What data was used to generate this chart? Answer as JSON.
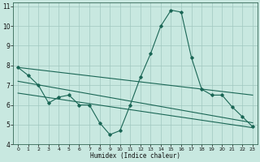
{
  "xlabel": "Humidex (Indice chaleur)",
  "xlim": [
    -0.5,
    23.5
  ],
  "ylim": [
    4,
    11.2
  ],
  "yticks": [
    4,
    5,
    6,
    7,
    8,
    9,
    10,
    11
  ],
  "xticks": [
    0,
    1,
    2,
    3,
    4,
    5,
    6,
    7,
    8,
    9,
    10,
    11,
    12,
    13,
    14,
    15,
    16,
    17,
    18,
    19,
    20,
    21,
    22,
    23
  ],
  "background_color": "#c8e8e0",
  "grid_color": "#a0c8c0",
  "line_color": "#1a6655",
  "lines": [
    {
      "x": [
        0,
        1,
        2,
        3,
        4,
        5,
        6,
        7,
        8,
        9,
        10,
        11,
        12,
        13,
        14,
        15,
        16,
        17,
        18,
        19,
        20,
        21,
        22,
        23
      ],
      "y": [
        7.9,
        7.5,
        7.0,
        6.1,
        6.4,
        6.5,
        6.0,
        6.0,
        5.1,
        4.5,
        4.7,
        6.0,
        7.4,
        8.6,
        10.0,
        10.8,
        10.7,
        8.4,
        6.8,
        6.5,
        6.5,
        5.9,
        5.4,
        4.9
      ]
    },
    {
      "x": [
        0,
        23
      ],
      "y": [
        7.9,
        6.5
      ]
    },
    {
      "x": [
        0,
        23
      ],
      "y": [
        7.3,
        5.0
      ]
    },
    {
      "x": [
        0,
        23
      ],
      "y": [
        6.8,
        4.9
      ]
    }
  ],
  "straight_lines": [
    {
      "x": [
        0,
        23
      ],
      "y": [
        7.9,
        6.5
      ]
    },
    {
      "x": [
        0,
        23
      ],
      "y": [
        7.2,
        5.1
      ]
    },
    {
      "x": [
        0,
        23
      ],
      "y": [
        6.6,
        4.85
      ]
    }
  ]
}
